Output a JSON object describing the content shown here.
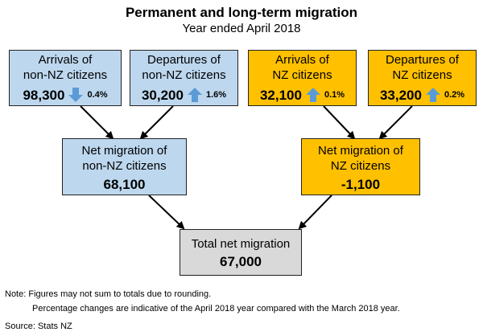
{
  "title": "Permanent and long-term migration",
  "subtitle": "Year ended April 2018",
  "colors": {
    "non_nz": "#bdd7ee",
    "nz": "#ffc000",
    "total": "#d9d9d9",
    "arrow": "#5b9bd5"
  },
  "boxes": {
    "arrivals_non_nz": {
      "line1": "Arrivals of",
      "line2": "non-NZ citizens",
      "value": "98,300",
      "change_direction": "down",
      "change": "0.4%",
      "icon": "down-arrow-icon"
    },
    "departures_non_nz": {
      "line1": "Departures of",
      "line2": "non-NZ citizens",
      "value": "30,200",
      "change_direction": "up",
      "change": "1.6%",
      "icon": "up-arrow-icon"
    },
    "arrivals_nz": {
      "line1": "Arrivals of",
      "line2": "NZ citizens",
      "value": "32,100",
      "change_direction": "up",
      "change": "0.1%",
      "icon": "up-arrow-icon"
    },
    "departures_nz": {
      "line1": "Departures of",
      "line2": "NZ citizens",
      "value": "33,200",
      "change_direction": "up",
      "change": "0.2%",
      "icon": "up-arrow-icon"
    },
    "net_non_nz": {
      "line1": "Net migration of",
      "line2": "non-NZ citizens",
      "value": "68,100"
    },
    "net_nz": {
      "line1": "Net migration of",
      "line2": "NZ citizens",
      "value": "-1,100"
    },
    "total": {
      "line1": "Total net migration",
      "value": "67,000"
    }
  },
  "notes": {
    "note1": "Note: Figures may not sum to totals due to rounding.",
    "note2": "Percentage changes are indicative of the April 2018 year compared with the March 2018 year.",
    "source": "Source: Stats NZ"
  }
}
